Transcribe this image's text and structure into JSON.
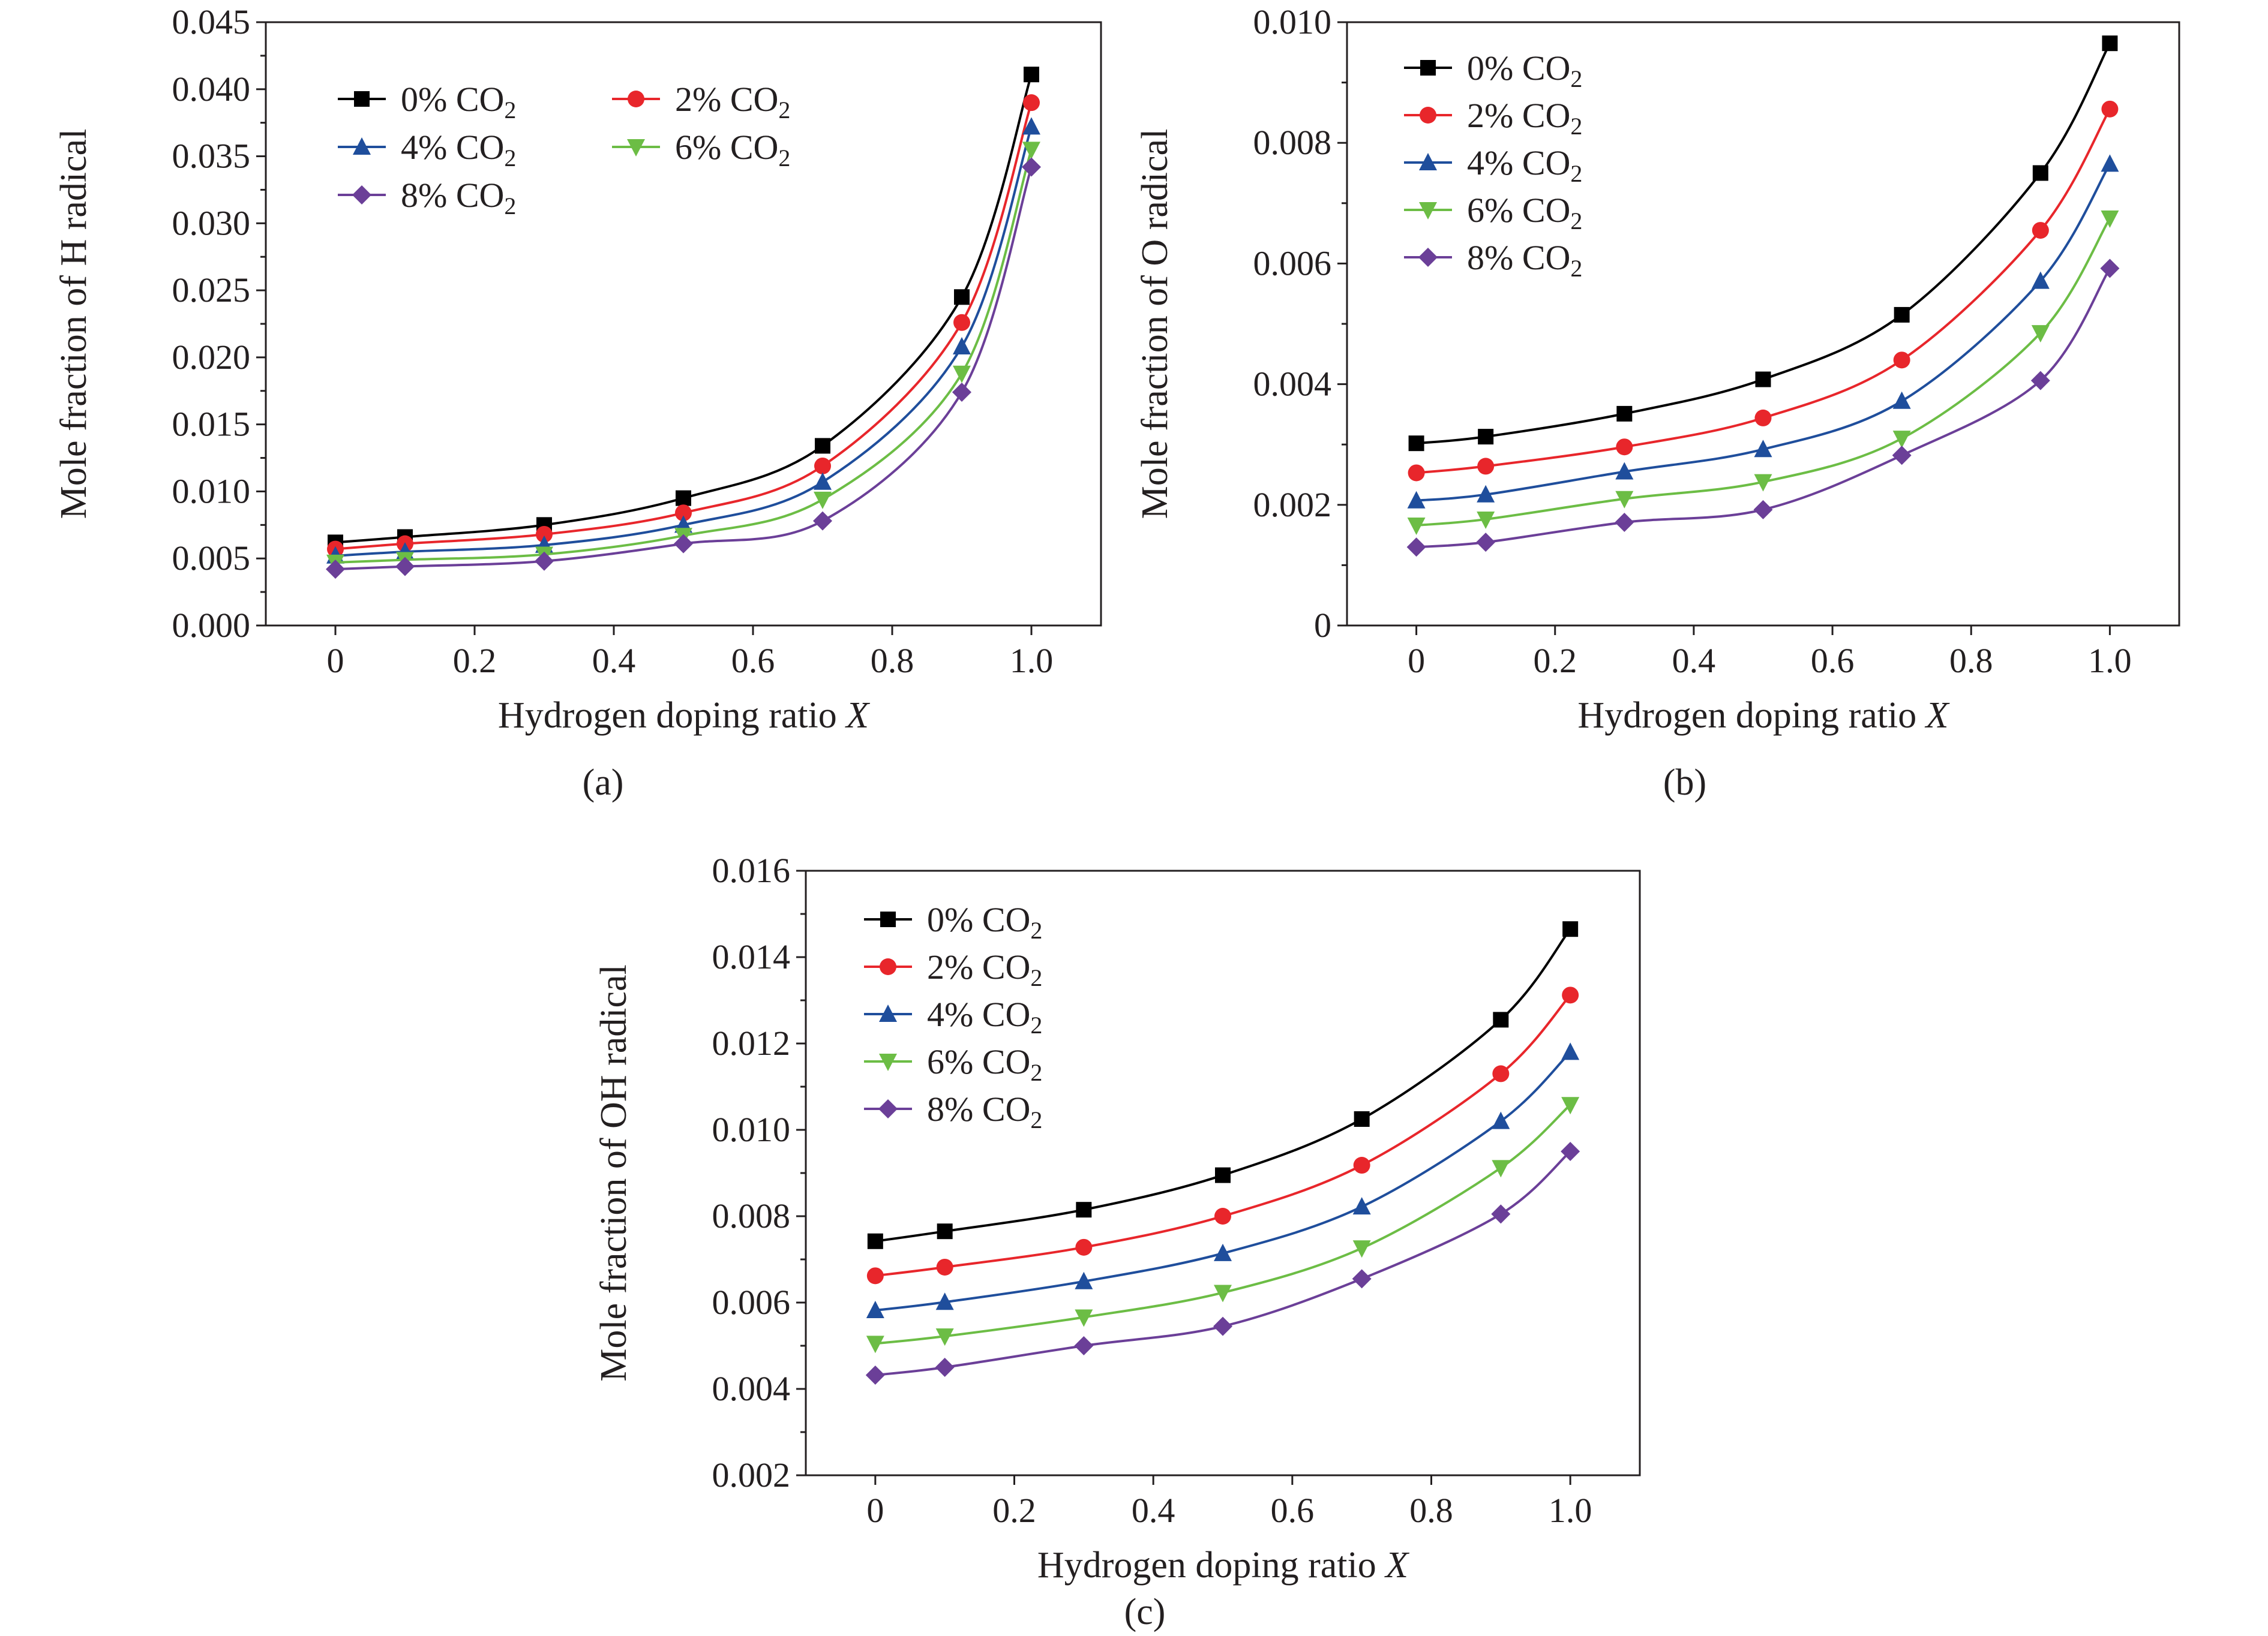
{
  "series_colors": {
    "0% CO2": "#000000",
    "2% CO2": "#e8262b",
    "4% CO2": "#1f4e9c",
    "6% CO2": "#6cbd45",
    "8% CO2": "#6b3f98"
  },
  "chart_data": [
    {
      "type": "line",
      "panel_label": "(a)",
      "xlabel": "Hydrogen doping ratio X",
      "ylabel": "Mole fraction of H radical",
      "xlim": [
        -0.1,
        1.1
      ],
      "ylim": [
        0.0,
        0.045
      ],
      "xticks": [
        "0",
        "0.2",
        "0.4",
        "0.6",
        "0.8",
        "1.0"
      ],
      "yticks": [
        "0.000",
        "0.005",
        "0.010",
        "0.015",
        "0.020",
        "0.025",
        "0.030",
        "0.035",
        "0.040",
        "0.045"
      ],
      "grid": false,
      "legend": "top-left, two columns",
      "x": [
        0,
        0.1,
        0.3,
        0.5,
        0.7,
        0.9,
        1.0
      ],
      "series": [
        {
          "name": "0% CO2",
          "marker": "square",
          "values": [
            0.0062,
            0.0066,
            0.0075,
            0.0095,
            0.0134,
            0.0245,
            0.0411
          ]
        },
        {
          "name": "2% CO2",
          "marker": "circle",
          "values": [
            0.0057,
            0.0061,
            0.0068,
            0.0084,
            0.0119,
            0.0226,
            0.039
          ]
        },
        {
          "name": "4% CO2",
          "marker": "triangle-up",
          "values": [
            0.0052,
            0.0055,
            0.006,
            0.0075,
            0.0107,
            0.0208,
            0.0372
          ]
        },
        {
          "name": "6% CO2",
          "marker": "triangle-down",
          "values": [
            0.0047,
            0.0049,
            0.0053,
            0.0067,
            0.0094,
            0.0188,
            0.0355
          ]
        },
        {
          "name": "8% CO2",
          "marker": "diamond",
          "values": [
            0.0042,
            0.0044,
            0.0048,
            0.0061,
            0.0078,
            0.0174,
            0.0342
          ]
        }
      ]
    },
    {
      "type": "line",
      "panel_label": "(b)",
      "xlabel": "Hydrogen doping ratio X",
      "ylabel": "Mole fraction of O radical",
      "xlim": [
        -0.1,
        1.1
      ],
      "ylim": [
        0,
        0.01
      ],
      "xticks": [
        "0",
        "0.2",
        "0.4",
        "0.6",
        "0.8",
        "1.0"
      ],
      "yticks": [
        "0",
        "0.002",
        "0.004",
        "0.006",
        "0.008",
        "0.010"
      ],
      "grid": false,
      "legend": "top-left",
      "x": [
        0,
        0.1,
        0.3,
        0.5,
        0.7,
        0.9,
        1.0
      ],
      "series": [
        {
          "name": "0% CO2",
          "marker": "square",
          "values": [
            0.00302,
            0.00313,
            0.00351,
            0.00408,
            0.00515,
            0.0075,
            0.00965
          ]
        },
        {
          "name": "2% CO2",
          "marker": "circle",
          "values": [
            0.00253,
            0.00264,
            0.00296,
            0.00344,
            0.0044,
            0.00655,
            0.00856
          ]
        },
        {
          "name": "4% CO2",
          "marker": "triangle-up",
          "values": [
            0.00207,
            0.00217,
            0.00255,
            0.00292,
            0.00372,
            0.00571,
            0.00765
          ]
        },
        {
          "name": "6% CO2",
          "marker": "triangle-down",
          "values": [
            0.00166,
            0.00176,
            0.0021,
            0.00238,
            0.0031,
            0.00485,
            0.00675
          ]
        },
        {
          "name": "8% CO2",
          "marker": "diamond",
          "values": [
            0.0013,
            0.00138,
            0.00171,
            0.00192,
            0.00282,
            0.00406,
            0.00592
          ]
        }
      ]
    },
    {
      "type": "line",
      "panel_label": "(c)",
      "xlabel": "Hydrogen doping ratio X",
      "ylabel": "Mole fraction of OH radical",
      "xlim": [
        -0.1,
        1.1
      ],
      "ylim": [
        0.002,
        0.016
      ],
      "xticks": [
        "0",
        "0.2",
        "0.4",
        "0.6",
        "0.8",
        "1.0"
      ],
      "yticks": [
        "0.002",
        "0.004",
        "0.006",
        "0.008",
        "0.010",
        "0.012",
        "0.014",
        "0.016"
      ],
      "grid": false,
      "legend": "top-left",
      "x": [
        0,
        0.1,
        0.3,
        0.5,
        0.7,
        0.9,
        1.0
      ],
      "series": [
        {
          "name": "0% CO2",
          "marker": "square",
          "values": [
            0.00742,
            0.00765,
            0.00815,
            0.00895,
            0.01025,
            0.01255,
            0.01465
          ]
        },
        {
          "name": "2% CO2",
          "marker": "circle",
          "values": [
            0.00662,
            0.00682,
            0.00728,
            0.008,
            0.00918,
            0.0113,
            0.01312
          ]
        },
        {
          "name": "4% CO2",
          "marker": "triangle-up",
          "values": [
            0.00582,
            0.00601,
            0.00649,
            0.00714,
            0.00822,
            0.0102,
            0.0118
          ]
        },
        {
          "name": "6% CO2",
          "marker": "triangle-down",
          "values": [
            0.00505,
            0.00522,
            0.00566,
            0.00623,
            0.00726,
            0.00912,
            0.01058
          ]
        },
        {
          "name": "8% CO2",
          "marker": "diamond",
          "values": [
            0.00432,
            0.0045,
            0.005,
            0.00545,
            0.00655,
            0.00805,
            0.0095
          ]
        }
      ]
    }
  ]
}
